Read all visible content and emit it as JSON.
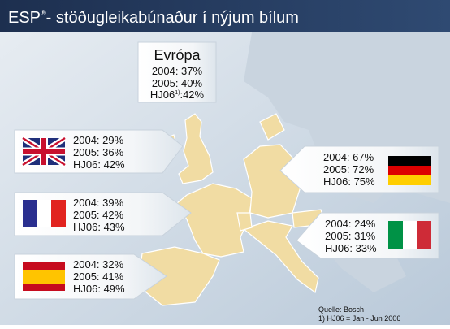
{
  "header": {
    "brand": "ESP",
    "brand_mark": "®",
    "title": "- stöðugleikabúnaður í nýjum bílum"
  },
  "europe": {
    "title": "Evrópa",
    "lines": [
      "2004: 37%",
      "2005: 40%"
    ],
    "last": {
      "prefix": "HJ06",
      "sup": "1)",
      "rest": ":42%"
    }
  },
  "countries": [
    {
      "lines": [
        "2004: 29%",
        "2005: 36%",
        "HJ06: 42%"
      ]
    },
    {
      "lines": [
        "2004: 39%",
        "2005: 42%",
        "HJ06: 43%"
      ]
    },
    {
      "lines": [
        "2004: 32%",
        "2005: 41%",
        "HJ06: 49%"
      ]
    },
    {
      "lines": [
        "2004: 67%",
        "2005: 72%",
        "HJ06: 75%"
      ]
    },
    {
      "lines": [
        "2004: 24%",
        "2005: 31%",
        "HJ06: 33%"
      ]
    }
  ],
  "footer": {
    "source": "Quelle: Bosch",
    "note": "1) HJ06 = Jan - Jun 2006"
  }
}
